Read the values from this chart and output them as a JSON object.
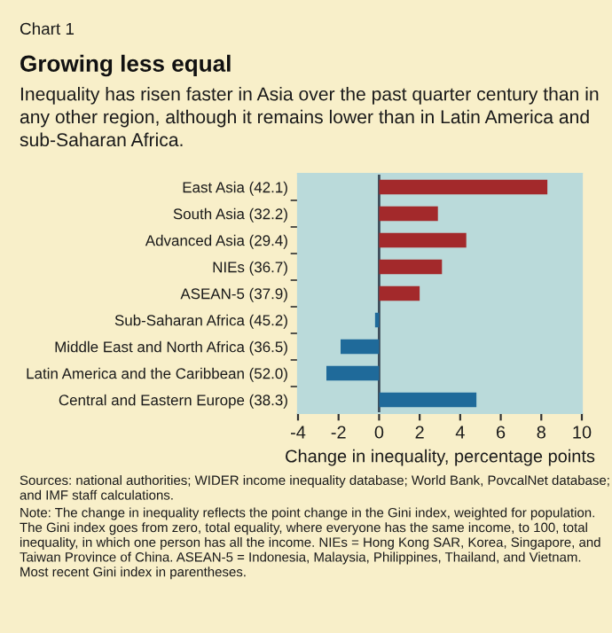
{
  "chart_data": {
    "type": "bar",
    "orientation": "horizontal",
    "title": "Growing less equal",
    "subtitle": "Inequality has risen faster in Asia over the past quarter century than in any other region, although it remains lower than in Latin America and sub-Saharan Africa.",
    "xlabel": "Change in inequality, percentage points",
    "categories": [
      "East Asia (42.1)",
      "South Asia (32.2)",
      "Advanced Asia (29.4)",
      "NIEs (36.7)",
      "ASEAN-5 (37.9)",
      "Sub-Saharan Africa (45.2)",
      "Middle East and North Africa (36.5)",
      "Latin America and the Caribbean (52.0)",
      "Central and Eastern Europe (38.3)"
    ],
    "values": [
      8.3,
      2.9,
      4.3,
      3.1,
      2.0,
      -0.2,
      -1.9,
      -2.6,
      4.8
    ],
    "colors": [
      "#a3292b",
      "#a3292b",
      "#a3292b",
      "#a3292b",
      "#a3292b",
      "#1f6a9a",
      "#1f6a9a",
      "#1f6a9a",
      "#1f6a9a"
    ],
    "xlim": [
      -4,
      10
    ],
    "xticks": [
      -4,
      -2,
      0,
      2,
      4,
      6,
      8,
      10
    ],
    "ref_lines": [
      {
        "axis": "x",
        "value": 0,
        "color": "#3c4a58"
      }
    ],
    "annotations": [
      "Chart 1",
      "Sources: national authorities; WIDER income inequality database; World Bank, PovcalNet database; and IMF staff calculations.",
      "Note: The change in inequality reflects the point change in the Gini index, weighted for population. The Gini index goes from zero, total equality, where everyone has the same income, to 100, total inequality, in which one person has all the income. NIEs = Hong Kong SAR, Korea, Singapore, and Taiwan Province of China. ASEAN-5 = Indonesia, Malaysia, Philippines, Thailand, and Vietnam. Most recent Gini index in parentheses."
    ]
  }
}
